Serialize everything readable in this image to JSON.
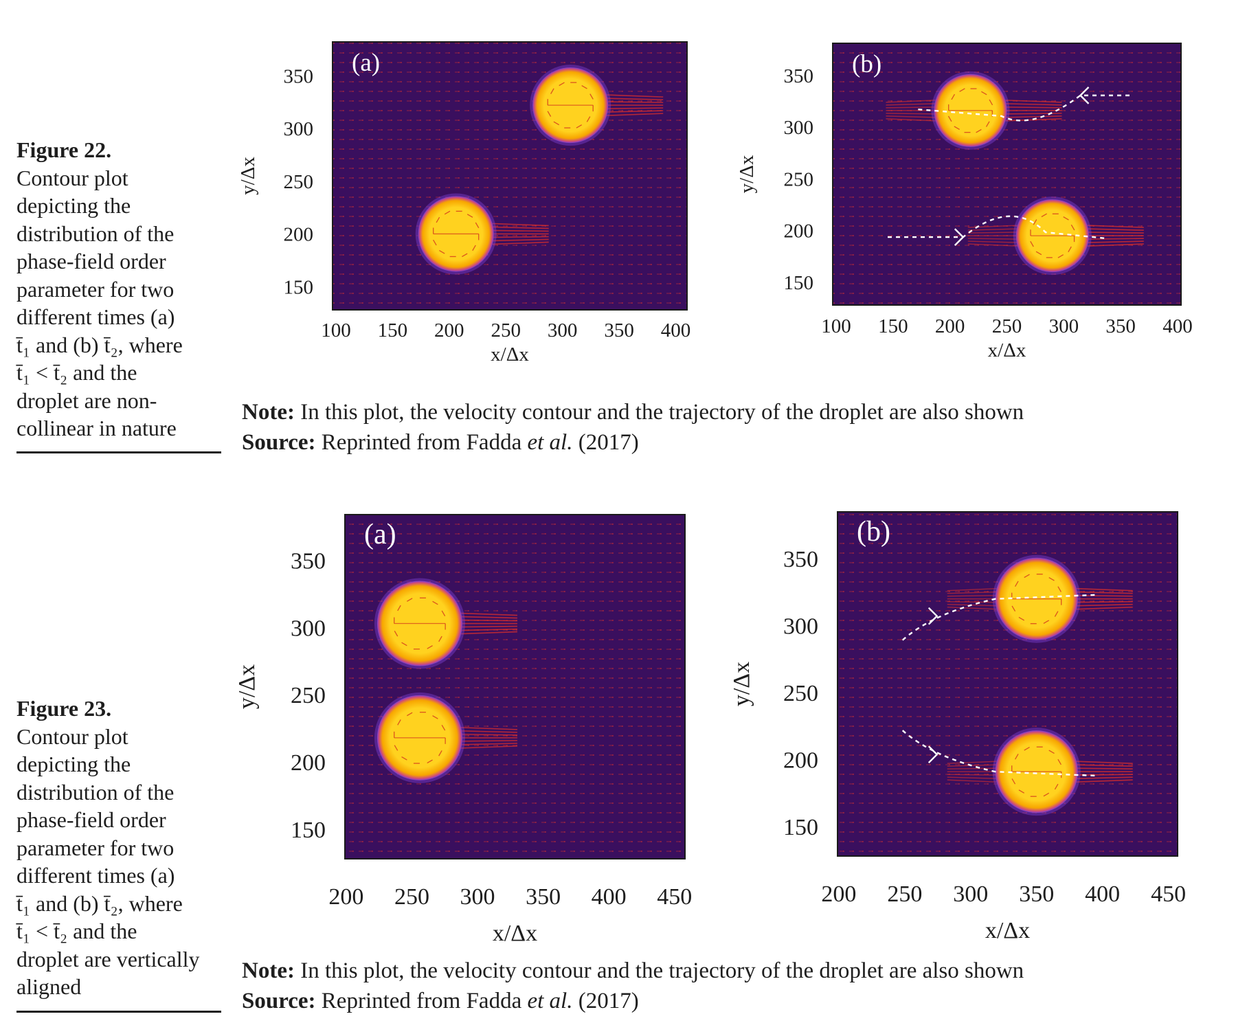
{
  "figures": [
    {
      "id": "fig22",
      "label": "Figure 22.",
      "caption_lines": [
        "Contour plot",
        "depicting the",
        "distribution of the",
        "phase-field order",
        "parameter for two",
        "different times (a)",
        "t̄₁ and (b) t̄₂, where",
        "t̄₁ < t̄₂ and the",
        "droplet are non-",
        "collinear in nature"
      ],
      "note_label": "Note:",
      "note_text": " In this plot, the velocity contour and the trajectory of the droplet are also shown",
      "source_label": "Source:",
      "source_text_before": " Reprinted from Fadda ",
      "source_text_italic": "et al.",
      "source_text_after": " (2017)",
      "panels": [
        {
          "panel_label": "(a)",
          "xlabel": "x/Δx",
          "ylabel": "y/Δx",
          "xticks": [
            100,
            150,
            200,
            250,
            300,
            350,
            400
          ],
          "yticks": [
            150,
            200,
            250,
            300,
            350
          ],
          "droplets": [
            {
              "x": 307,
              "y": 322
            },
            {
              "x": 206,
              "y": 200
            }
          ]
        },
        {
          "panel_label": "(b)",
          "xlabel": "x/Δx",
          "ylabel": "y/Δx",
          "xticks": [
            100,
            150,
            200,
            250,
            300,
            350,
            400
          ],
          "yticks": [
            150,
            200,
            250,
            300,
            350
          ],
          "droplets": [
            {
              "x": 218,
              "y": 316
            },
            {
              "x": 290,
              "y": 195
            }
          ]
        }
      ]
    },
    {
      "id": "fig23",
      "label": "Figure 23.",
      "caption_lines": [
        "Contour plot",
        "depicting the",
        "distribution of the",
        "phase-field order",
        "parameter for two",
        "different times  (a)",
        "t̄₁ and (b) t̄₂, where",
        "t̄₁ < t̄₂ and the",
        "droplet are vertically",
        "aligned"
      ],
      "note_label": "Note:",
      "note_text": " In this plot, the velocity contour and the trajectory of the droplet are also shown",
      "source_label": "Source:",
      "source_text_before": " Reprinted from Fadda ",
      "source_text_italic": "et al.",
      "source_text_after": " (2017)",
      "panels": [
        {
          "panel_label": "(a)",
          "xlabel": "x/Δx",
          "ylabel": "y/Δx",
          "xticks": [
            200,
            250,
            300,
            350,
            400,
            450
          ],
          "yticks": [
            150,
            200,
            250,
            300,
            350
          ],
          "droplets": [
            {
              "x": 256,
              "y": 303
            },
            {
              "x": 256,
              "y": 218
            }
          ]
        },
        {
          "panel_label": "(b)",
          "xlabel": "x/Δx",
          "ylabel": "y/Δx",
          "xticks": [
            200,
            250,
            300,
            350,
            400,
            450
          ],
          "yticks": [
            150,
            200,
            250,
            300,
            350
          ],
          "droplets": [
            {
              "x": 350,
              "y": 320
            },
            {
              "x": 350,
              "y": 191
            }
          ]
        }
      ]
    }
  ],
  "colors": {
    "background_field": "#3a0f5e",
    "velocity_vectors": "#e0302a",
    "droplet_core": "#ffd21f",
    "droplet_edge": "#f7a600",
    "droplet_halo": "#7a3fd0",
    "trajectory": "#ffffff"
  }
}
